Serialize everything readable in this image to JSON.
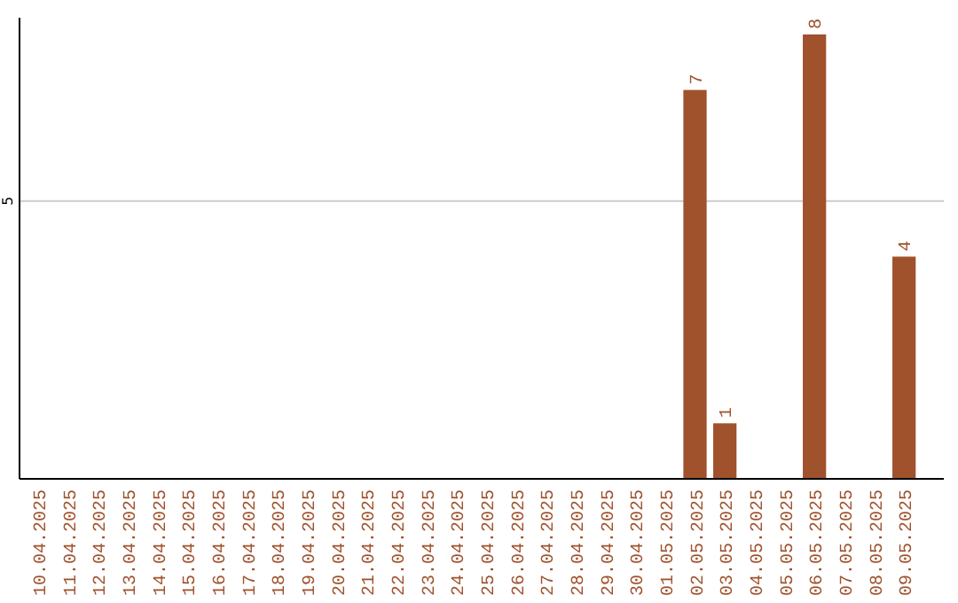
{
  "chart_data": {
    "type": "bar",
    "categories": [
      "10.04.2025",
      "11.04.2025",
      "12.04.2025",
      "13.04.2025",
      "14.04.2025",
      "15.04.2025",
      "16.04.2025",
      "17.04.2025",
      "18.04.2025",
      "19.04.2025",
      "20.04.2025",
      "21.04.2025",
      "22.04.2025",
      "23.04.2025",
      "24.04.2025",
      "25.04.2025",
      "26.04.2025",
      "27.04.2025",
      "28.04.2025",
      "29.04.2025",
      "30.04.2025",
      "01.05.2025",
      "02.05.2025",
      "03.05.2025",
      "04.05.2025",
      "05.05.2025",
      "06.05.2025",
      "07.05.2025",
      "08.05.2025",
      "09.05.2025"
    ],
    "values": [
      null,
      null,
      null,
      null,
      null,
      null,
      null,
      null,
      null,
      null,
      null,
      null,
      null,
      null,
      null,
      null,
      null,
      null,
      null,
      null,
      null,
      null,
      7,
      1,
      null,
      null,
      8,
      null,
      null,
      4
    ],
    "value_labels": [
      null,
      null,
      null,
      null,
      null,
      null,
      null,
      null,
      null,
      null,
      null,
      null,
      null,
      null,
      null,
      null,
      null,
      null,
      null,
      null,
      null,
      null,
      "7",
      "1",
      null,
      null,
      "8",
      null,
      null,
      "4"
    ],
    "color": "#a0522d",
    "ylim": [
      0,
      8.3
    ],
    "yticks": [
      5
    ],
    "grid": "y"
  }
}
